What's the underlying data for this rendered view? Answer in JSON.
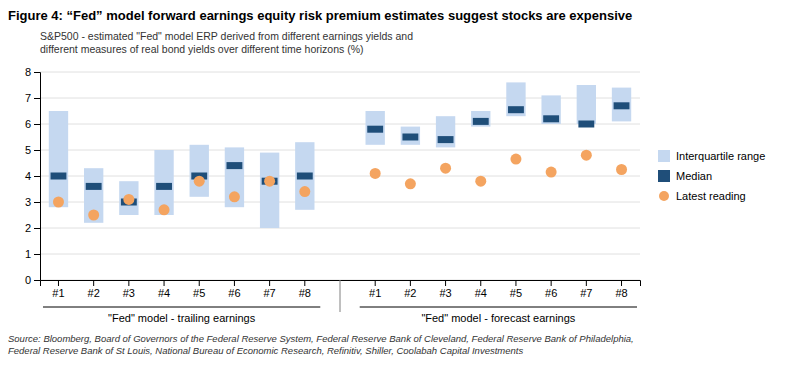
{
  "chart_data": {
    "type": "range",
    "title": "Figure 4: “Fed” model forward earnings equity risk premium estimates suggest stocks are expensive",
    "subtitle": "S&P500 - estimated \"Fed\" model ERP derived from different earnings yields and\ndifferent measures of real bond yields over different time horizons (%)",
    "source": "Source: Bloomberg, Board of Governors of the Federal Reserve System, Federal Reserve Bank of Cleveland, Federal Reserve Bank of Philadelphia,\nFederal Reserve Bank of St Louis, National Bureau of Economic Research, Refinitiv, Shiller, Coolabah Capital Investments",
    "groups": [
      {
        "label": "\"Fed\" model - trailing earnings",
        "categories": [
          "#1",
          "#2",
          "#3",
          "#4",
          "#5",
          "#6",
          "#7",
          "#8"
        ]
      },
      {
        "label": "\"Fed\" model - forecast earnings",
        "categories": [
          "#1",
          "#2",
          "#3",
          "#4",
          "#5",
          "#6",
          "#7",
          "#8"
        ]
      }
    ],
    "series": [
      {
        "name": "Interquartile range",
        "type": "bar",
        "color": "#c5d8f0",
        "low": [
          2.8,
          2.2,
          2.5,
          2.5,
          3.2,
          2.8,
          2.0,
          2.7,
          5.2,
          5.2,
          5.1,
          5.9,
          6.3,
          6.0,
          6.0,
          6.1
        ],
        "high": [
          6.5,
          4.3,
          3.8,
          5.0,
          5.2,
          5.1,
          4.9,
          5.3,
          6.5,
          5.9,
          6.3,
          6.5,
          7.6,
          7.1,
          7.5,
          7.4
        ]
      },
      {
        "name": "Median",
        "type": "scatter",
        "marker": "square",
        "color": "#1f4e79",
        "values": [
          4.0,
          3.6,
          3.0,
          3.6,
          4.0,
          4.4,
          3.8,
          4.0,
          5.8,
          5.5,
          5.4,
          6.1,
          6.55,
          6.2,
          6.0,
          6.7
        ]
      },
      {
        "name": "Latest reading",
        "type": "scatter",
        "marker": "circle",
        "color": "#f4a460",
        "values": [
          3.0,
          2.5,
          3.1,
          2.7,
          3.8,
          3.2,
          3.8,
          3.4,
          4.1,
          3.7,
          4.3,
          3.8,
          4.65,
          4.15,
          4.8,
          4.25
        ]
      }
    ],
    "ylim": [
      0,
      8
    ],
    "yticks": [
      0,
      1,
      2,
      3,
      4,
      5,
      6,
      7,
      8
    ],
    "grid": true,
    "legend": "right"
  }
}
